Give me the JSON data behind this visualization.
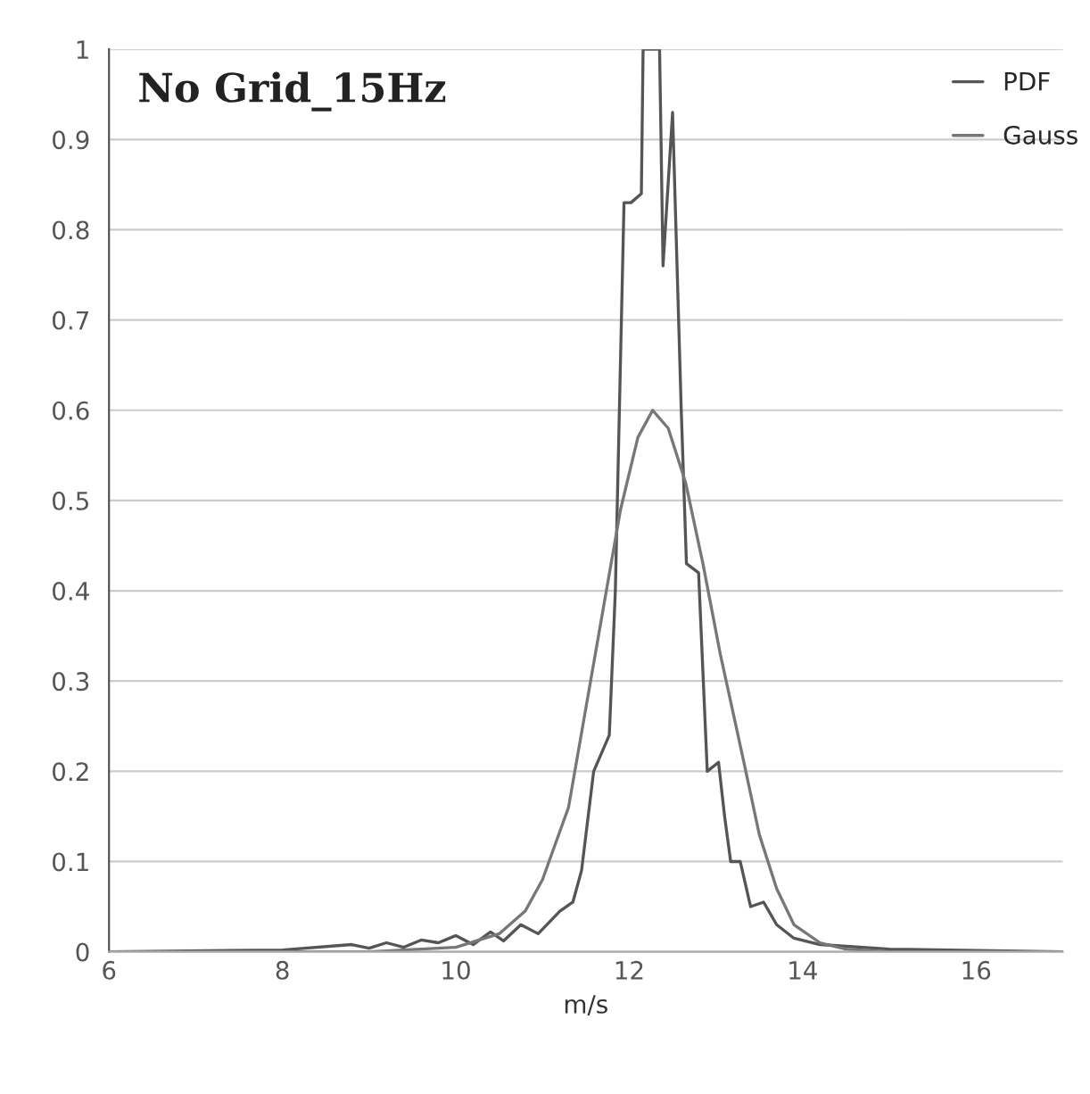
{
  "chart_data": {
    "type": "line",
    "title": "No Grid_15Hz",
    "xlabel": "m/s",
    "xlim": [
      6,
      17
    ],
    "xticks": [
      6,
      8,
      10,
      12,
      14,
      16
    ],
    "ylim": [
      0,
      1
    ],
    "yticks": [
      0,
      0.1,
      0.2,
      0.3,
      0.4,
      0.5,
      0.6,
      0.7,
      0.8,
      0.9,
      1
    ],
    "grid": "y",
    "legend": "top right",
    "series": [
      {
        "name": "PDF",
        "color": "#555555",
        "x": [
          6,
          8,
          8.8,
          9.0,
          9.2,
          9.4,
          9.6,
          9.8,
          10.0,
          10.2,
          10.4,
          10.55,
          10.75,
          10.95,
          11.2,
          11.35,
          11.45,
          11.59,
          11.77,
          11.84,
          11.94,
          12.02,
          12.14,
          12.16,
          12.2,
          12.3,
          12.35,
          12.39,
          12.5,
          12.6,
          12.66,
          12.8,
          12.9,
          13.03,
          13.1,
          13.17,
          13.28,
          13.4,
          13.55,
          13.7,
          13.9,
          14.2,
          15,
          17
        ],
        "values": [
          0,
          0.002,
          0.008,
          0.004,
          0.01,
          0.005,
          0.013,
          0.01,
          0.018,
          0.008,
          0.022,
          0.012,
          0.03,
          0.02,
          0.045,
          0.055,
          0.09,
          0.2,
          0.24,
          0.4,
          0.83,
          0.83,
          0.84,
          1,
          1,
          1,
          1,
          0.76,
          0.93,
          0.6,
          0.43,
          0.42,
          0.2,
          0.21,
          0.15,
          0.1,
          0.1,
          0.05,
          0.055,
          0.03,
          0.015,
          0.008,
          0.003,
          0
        ]
      },
      {
        "name": "Gauss",
        "color": "#777777",
        "x": [
          6,
          9,
          10,
          10.5,
          10.8,
          11,
          11.3,
          11.5,
          11.7,
          11.9,
          12.1,
          12.27,
          12.45,
          12.65,
          12.85,
          13.05,
          13.3,
          13.5,
          13.7,
          13.9,
          14.2,
          14.5,
          15,
          17
        ],
        "values": [
          0,
          0,
          0.005,
          0.02,
          0.045,
          0.08,
          0.16,
          0.27,
          0.38,
          0.49,
          0.57,
          0.6,
          0.58,
          0.52,
          0.43,
          0.33,
          0.22,
          0.13,
          0.07,
          0.03,
          0.01,
          0.003,
          0,
          0
        ]
      }
    ]
  }
}
